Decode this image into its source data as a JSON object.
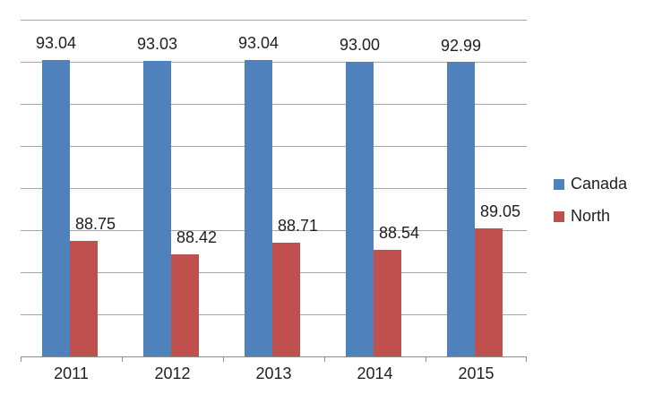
{
  "chart_data": {
    "type": "bar",
    "categories": [
      "2011",
      "2012",
      "2013",
      "2014",
      "2015"
    ],
    "series": [
      {
        "name": "Canada",
        "color": "#4F81BD",
        "values": [
          93.04,
          93.03,
          93.04,
          93.0,
          92.99
        ],
        "labels": [
          "93.04",
          "93.03",
          "93.04",
          "93.00",
          "92.99"
        ]
      },
      {
        "name": "North",
        "color": "#C0504D",
        "values": [
          88.75,
          88.42,
          88.71,
          88.54,
          89.05
        ],
        "labels": [
          "88.75",
          "88.42",
          "88.71",
          "88.54",
          "89.05"
        ]
      }
    ],
    "ylim": [
      86,
      94
    ],
    "gridline_step": 1,
    "grid": true,
    "y_axis_labels_visible": false,
    "legend_position": "right",
    "data_labels_position": "outside-end",
    "gridline_color": "#A6A6A6",
    "axis_color": "#8E8E8E",
    "text_color": "#1F1F1F",
    "background_color": "#FFFFFF"
  }
}
